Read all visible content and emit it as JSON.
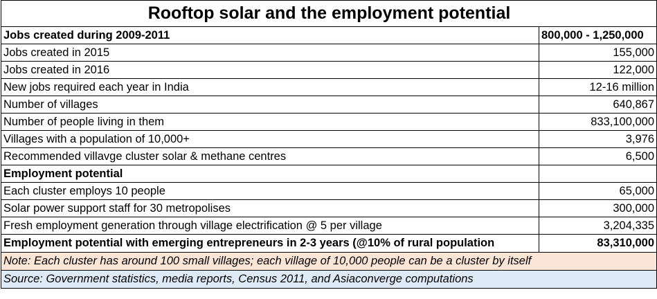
{
  "title": "Rooftop solar and the employment potential",
  "rows": [
    {
      "label": "Jobs created during 2009-2011",
      "value": "800,000 - 1,250,000"
    },
    {
      "label": "Jobs created in 2015",
      "value": "155,000"
    },
    {
      "label": "Jobs created in 2016",
      "value": "122,000"
    },
    {
      "label": "New jobs required each year  in India",
      "value": "12-16 million"
    },
    {
      "label": "Number of villages",
      "value": "640,867"
    },
    {
      "label": "Number of people living in them",
      "value": "833,100,000"
    },
    {
      "label": "Villages with a population of 10,000+",
      "value": "3,976"
    },
    {
      "label": "Recommended villavge cluster solar & methane centres",
      "value": "6,500"
    },
    {
      "label": "Employment potential",
      "value": ""
    },
    {
      "label": "Each cluster employs 10 people",
      "value": "65,000"
    },
    {
      "label": "Solar power support staff for 30 metropolises",
      "value": "300,000"
    },
    {
      "label": "Fresh employment generation through village electrification @ 5 per village",
      "value": "3,204,335"
    },
    {
      "label": "Employment potential with emerging entrepreneurs  in 2-3 years (@10% of rural population",
      "value": "83,310,000"
    }
  ],
  "note": "Note: Each cluster has around 100 small villages; each village of 10,000 people can be a cluster by itself",
  "source": "Source: Government statistics, media reports, Census 2011, and Asiaconverge computations"
}
